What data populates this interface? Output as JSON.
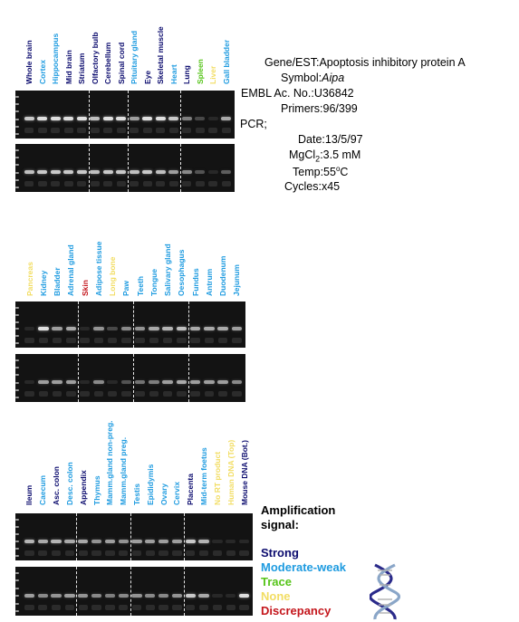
{
  "colors": {
    "strong": "#0b0b6e",
    "moderate_weak": "#1e9be0",
    "trace": "#56c41a",
    "none": "#f2dd62",
    "discrepancy": "#c4161c"
  },
  "info": {
    "gene_key": "Gene/EST:",
    "gene_val": "Apoptosis inhibitory protein A",
    "symbol_key": "Symbol:",
    "symbol_val": "Aipa",
    "embl_key": "EMBL Ac. No.:",
    "embl_val": "U36842",
    "primers_key": "Primers:",
    "primers_val": "96/399",
    "pcr_key": "PCR;",
    "date_key": "Date:",
    "date_val": "13/5/97",
    "mgcl_key_pre": "MgCl",
    "mgcl_key_sub": "2",
    "mgcl_key_post": ":",
    "mgcl_val": "3.5 mM",
    "temp_key": "Temp:",
    "temp_val_pre": "55",
    "temp_val_sup": "o",
    "temp_val_post": "C",
    "cycles_key": "Cycles:",
    "cycles_val": "x45"
  },
  "legend": {
    "title_line1": "Amplification",
    "title_line2": "signal:",
    "strong": "Strong",
    "moderate_weak": "Moderate-weak",
    "trace": "Trace",
    "none": "None",
    "discrepancy": "Discrepancy",
    "dna_icon": "dna-helix-icon"
  },
  "panels": [
    {
      "lanes": [
        {
          "label": "Whole brain",
          "level": "strong"
        },
        {
          "label": "Cortex",
          "level": "moderate_weak"
        },
        {
          "label": "Hippocampus",
          "level": "moderate_weak"
        },
        {
          "label": "Mid brain",
          "level": "strong"
        },
        {
          "label": "Striatum",
          "level": "strong"
        },
        {
          "label": "Olfactory bulb",
          "level": "strong"
        },
        {
          "label": "Cerebellum",
          "level": "strong"
        },
        {
          "label": "Spinal cord",
          "level": "strong"
        },
        {
          "label": "Pituitary gland",
          "level": "moderate_weak"
        },
        {
          "label": "Eye",
          "level": "strong"
        },
        {
          "label": "Skeletal muscle",
          "level": "strong"
        },
        {
          "label": "Heart",
          "level": "moderate_weak"
        },
        {
          "label": "Lung",
          "level": "strong"
        },
        {
          "label": "Spleen",
          "level": "trace"
        },
        {
          "label": "Liver",
          "level": "none"
        },
        {
          "label": "Gall bladder",
          "level": "moderate_weak"
        }
      ],
      "gel1": [
        0.75,
        0.85,
        0.85,
        0.85,
        0.85,
        0.7,
        0.85,
        0.85,
        0.55,
        0.85,
        0.85,
        0.75,
        0.4,
        0.15,
        0.0,
        0.6
      ],
      "gel2": [
        0.7,
        0.75,
        0.75,
        0.75,
        0.75,
        0.7,
        0.75,
        0.75,
        0.7,
        0.75,
        0.7,
        0.55,
        0.45,
        0.2,
        0.0,
        0.25
      ]
    },
    {
      "lanes": [
        {
          "label": "Pancreas",
          "level": "none"
        },
        {
          "label": "Kidney",
          "level": "moderate_weak"
        },
        {
          "label": "Bladder",
          "level": "moderate_weak"
        },
        {
          "label": "Adrenal gland",
          "level": "moderate_weak"
        },
        {
          "label": "Skin",
          "level": "discrepancy"
        },
        {
          "label": "Adipose tissue",
          "level": "moderate_weak"
        },
        {
          "label": "Long bone",
          "level": "none"
        },
        {
          "label": "Paw",
          "level": "moderate_weak"
        },
        {
          "label": "Teeth",
          "level": "moderate_weak"
        },
        {
          "label": "Tongue",
          "level": "moderate_weak"
        },
        {
          "label": "Salivary gland",
          "level": "moderate_weak"
        },
        {
          "label": "Oesophagus",
          "level": "moderate_weak"
        },
        {
          "label": "Fundus",
          "level": "moderate_weak"
        },
        {
          "label": "Antrum",
          "level": "moderate_weak"
        },
        {
          "label": "Duodenum",
          "level": "moderate_weak"
        },
        {
          "label": "Jejunum",
          "level": "moderate_weak"
        }
      ],
      "gel1": [
        0.0,
        0.85,
        0.55,
        0.6,
        0.0,
        0.5,
        0.15,
        0.45,
        0.5,
        0.6,
        0.65,
        0.7,
        0.6,
        0.6,
        0.6,
        0.55
      ],
      "gel2": [
        0.0,
        0.55,
        0.55,
        0.55,
        0.0,
        0.45,
        0.0,
        0.2,
        0.35,
        0.4,
        0.55,
        0.6,
        0.55,
        0.55,
        0.55,
        0.45
      ]
    },
    {
      "lanes": [
        {
          "label": "Ileum",
          "level": "strong"
        },
        {
          "label": "Caecum",
          "level": "moderate_weak"
        },
        {
          "label": "Asc. colon",
          "level": "strong"
        },
        {
          "label": "Desc. colon",
          "level": "moderate_weak"
        },
        {
          "label": "Appendix",
          "level": "strong"
        },
        {
          "label": "Thymus",
          "level": "moderate_weak"
        },
        {
          "label": "Mamm.gland non-preg.",
          "level": "moderate_weak"
        },
        {
          "label": "Mamm.gland preg.",
          "level": "moderate_weak"
        },
        {
          "label": "Testis",
          "level": "moderate_weak"
        },
        {
          "label": "Epididymis",
          "level": "moderate_weak"
        },
        {
          "label": "Ovary",
          "level": "moderate_weak"
        },
        {
          "label": "Cervix",
          "level": "moderate_weak"
        },
        {
          "label": "Placenta",
          "level": "strong"
        },
        {
          "label": "Mid-term foetus",
          "level": "moderate_weak"
        },
        {
          "label": "No RT product",
          "level": "none"
        },
        {
          "label": "Human DNA (Top)",
          "level": "none"
        },
        {
          "label": "Mouse DNA (Bot.)",
          "level": "strong"
        }
      ],
      "gel1": [
        0.65,
        0.6,
        0.65,
        0.6,
        0.6,
        0.5,
        0.55,
        0.5,
        0.55,
        0.55,
        0.55,
        0.55,
        0.75,
        0.65,
        0.0,
        0.0,
        0.0
      ],
      "gel2": [
        0.55,
        0.45,
        0.5,
        0.55,
        0.5,
        0.45,
        0.4,
        0.45,
        0.5,
        0.45,
        0.45,
        0.5,
        0.75,
        0.6,
        0.0,
        0.0,
        0.85
      ]
    }
  ]
}
